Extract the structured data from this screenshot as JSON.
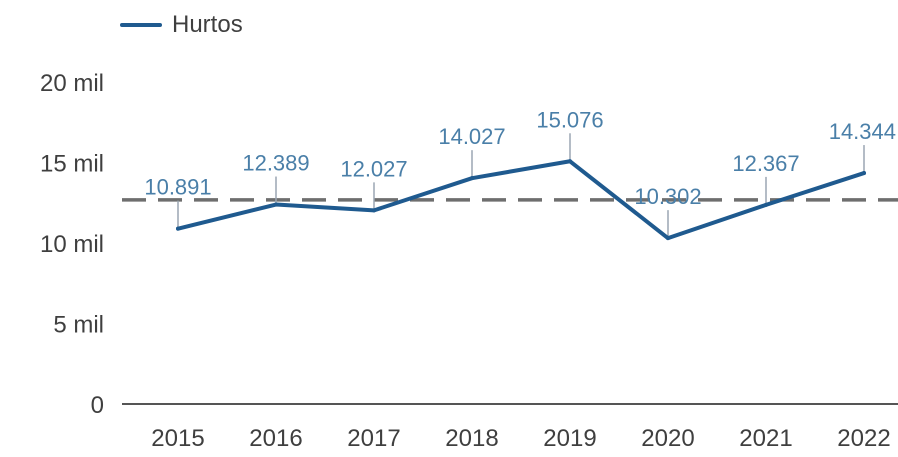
{
  "chart_data": {
    "type": "line",
    "categories": [
      "2015",
      "2016",
      "2017",
      "2018",
      "2019",
      "2020",
      "2021",
      "2022"
    ],
    "series": [
      {
        "name": "Hurtos",
        "values": [
          10891,
          12389,
          12027,
          14027,
          15076,
          10302,
          12367,
          14344
        ],
        "labels": [
          "10.891",
          "12.389",
          "12.027",
          "14.027",
          "15.076",
          "10.302",
          "12.367",
          "14.344"
        ],
        "color": "#1f5a8f"
      }
    ],
    "reference_line": {
      "value": 12678,
      "style": "dashed",
      "color": "#6e6e6e"
    },
    "ylim": [
      0,
      20000
    ],
    "yticks": [
      {
        "value": 0,
        "label": "0"
      },
      {
        "value": 5000,
        "label": "5 mil"
      },
      {
        "value": 10000,
        "label": "10 mil"
      },
      {
        "value": 15000,
        "label": "15 mil"
      },
      {
        "value": 20000,
        "label": "20 mil"
      }
    ],
    "title": "",
    "xlabel": "",
    "ylabel": "",
    "grid": false,
    "legend_position": "top-left",
    "colors": {
      "line": "#1f5a8f",
      "data_label": "#4a7fa8",
      "axis_text": "#3f3f3f",
      "axis_line": "#555555"
    }
  }
}
